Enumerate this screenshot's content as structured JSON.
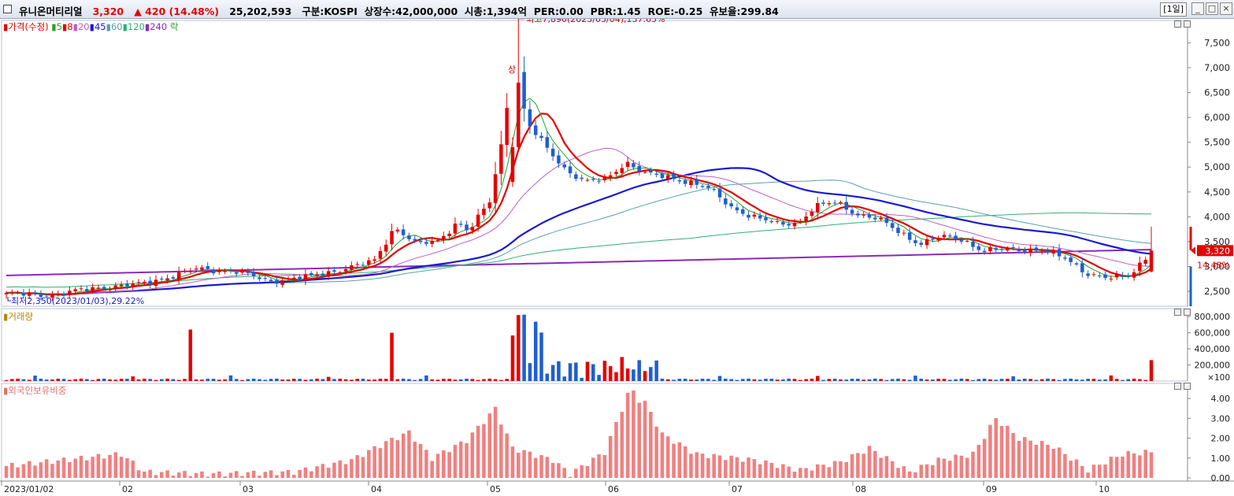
{
  "header": {
    "stock_name": "유니온머티리얼",
    "price": "3,320",
    "change_arrow": "▲",
    "change": "420",
    "change_pct": "(14.48%)",
    "volume": "25,202,593",
    "market": "구분:KOSPI",
    "shares": "상장수:42,000,000",
    "mktcap": "시총:1,394억",
    "per": "PER:0.00",
    "pbr": "PBR:1.45",
    "roe": "ROE:-0.25",
    "reserve": "유보율:299.84",
    "period": "[1일]",
    "min_icon": "_",
    "max_icon": "□",
    "close_icon": "×"
  },
  "legend": {
    "price": "가격(수정)",
    "ma": [
      {
        "label": "5",
        "color": "#2a9d2a"
      },
      {
        "label": "8",
        "color": "#e60000"
      },
      {
        "label": "20",
        "color": "#c060c0"
      },
      {
        "label": "45",
        "color": "#1a1ad0"
      },
      {
        "label": "60",
        "color": "#5aa0b0"
      },
      {
        "label": "120",
        "color": "#30b070"
      },
      {
        "label": "240",
        "color": "#8a2ab8"
      }
    ],
    "tail": "락"
  },
  "annotations": {
    "high": "최고7,890(2023/05/04),137.65%",
    "low": "최저2,350(2023/01/03),29.22%",
    "upper_limit": "상",
    "current_price": "3,320",
    "current_pct": "14.48%",
    "volume_unit": "×100"
  },
  "panels": {
    "volume_label": "거래량",
    "foreign_label": "외국인보유비중"
  },
  "colors": {
    "up": "#e60000",
    "down": "#1f5fd0",
    "foreign": "#f08080"
  },
  "chart_data": [
    {
      "type": "candlestick",
      "title": "가격(수정)",
      "x": [
        "2023/01/02",
        "02",
        "03",
        "04",
        "05",
        "06",
        "07",
        "08",
        "09",
        "10"
      ],
      "yticks": [
        "2,500",
        "3,000",
        "3,500",
        "4,000",
        "4,500",
        "5,000",
        "5,500",
        "6,000",
        "6,500",
        "7,000",
        "7,500"
      ],
      "ylim": [
        2200,
        7950
      ],
      "period": "2023/01/02 – 2023/10 (daily)",
      "high": 7890,
      "low": 2350,
      "last": 3320,
      "series": [
        {
          "name": "5",
          "values": [
            2450,
            2520,
            2750,
            3000,
            5600,
            4750,
            3950,
            3500,
            3400,
            2850
          ]
        },
        {
          "name": "8",
          "values": [
            2470,
            2550,
            2780,
            3050,
            5450,
            4700,
            3900,
            3550,
            3450,
            2800
          ]
        },
        {
          "name": "20",
          "values": [
            2550,
            2620,
            2760,
            3150,
            5000,
            4800,
            3950,
            3550,
            3450,
            2980
          ]
        },
        {
          "name": "45",
          "values": [
            2580,
            2600,
            2740,
            2950,
            3700,
            4400,
            4600,
            3850,
            3600,
            3300
          ]
        },
        {
          "name": "60",
          "values": [
            2700,
            2680,
            2730,
            2850,
            3500,
            4250,
            4450,
            3900,
            3700,
            3380
          ]
        },
        {
          "name": "120",
          "values": [
            2800,
            2780,
            2760,
            2800,
            3200,
            3700,
            3950,
            3950,
            3980,
            3950
          ]
        },
        {
          "name": "240",
          "values": [
            2850,
            2840,
            2830,
            2840,
            2950,
            3100,
            3230,
            3300,
            3320,
            3330
          ]
        }
      ]
    },
    {
      "type": "bar",
      "title": "거래량",
      "yticks": [
        "200,000",
        "400,000",
        "600,000",
        "800,000"
      ],
      "unit": "×100",
      "ylim": [
        0,
        900000
      ],
      "peak": 820000
    },
    {
      "type": "bar",
      "title": "외국인보유비중",
      "yticks": [
        "0.00",
        "1.00",
        "2.00",
        "3.00",
        "4.00"
      ],
      "ylim": [
        0,
        4.6
      ],
      "peak": 4.4
    }
  ],
  "xaxis": [
    "2023/01/02",
    "02",
    "03",
    "04",
    "05",
    "06",
    "07",
    "08",
    "09",
    "10"
  ]
}
